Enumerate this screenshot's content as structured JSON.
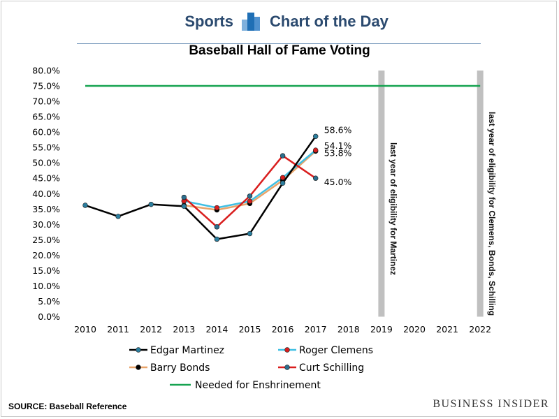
{
  "header": {
    "left": "Sports",
    "right": "Chart of the Day"
  },
  "source": "SOURCE: Baseball Reference",
  "brand": "BUSINESS INSIDER",
  "colors": {
    "edgar": "#000000",
    "edgar_marker": "#2c7f9f",
    "clemens": "#3fbfe3",
    "bonds": "#e8a46a",
    "schilling": "#d91e1e",
    "schilling_marker": "#2c6f8f",
    "enshrinement": "#16a350",
    "eligibility_bar": "#c0c0c0",
    "header": "#2b4a6f"
  },
  "chart_data": {
    "type": "line",
    "title": "Baseball Hall of Fame Voting",
    "categories": [
      "2010",
      "2011",
      "2012",
      "2013",
      "2014",
      "2015",
      "2016",
      "2017",
      "2018",
      "2019",
      "2020",
      "2021",
      "2022"
    ],
    "ylim": [
      0,
      80
    ],
    "yticks": [
      "0.0%",
      "5.0%",
      "10.0%",
      "15.0%",
      "20.0%",
      "25.0%",
      "30.0%",
      "35.0%",
      "40.0%",
      "45.0%",
      "50.0%",
      "55.0%",
      "60.0%",
      "65.0%",
      "70.0%",
      "75.0%",
      "80.0%"
    ],
    "series": [
      {
        "name": "Edgar Martinez",
        "values": [
          36.2,
          32.6,
          36.5,
          35.9,
          25.2,
          27.0,
          43.4,
          58.6,
          null,
          null,
          null,
          null,
          null
        ]
      },
      {
        "name": "Roger Clemens",
        "values": [
          null,
          null,
          null,
          37.6,
          35.4,
          37.5,
          45.2,
          54.1,
          null,
          null,
          null,
          null,
          null
        ]
      },
      {
        "name": "Barry Bonds",
        "values": [
          null,
          null,
          null,
          36.2,
          34.7,
          36.8,
          44.3,
          53.8,
          null,
          null,
          null,
          null,
          null
        ]
      },
      {
        "name": "Curt Schilling",
        "values": [
          null,
          null,
          null,
          38.8,
          29.2,
          39.2,
          52.3,
          45.0,
          null,
          null,
          null,
          null,
          null
        ]
      },
      {
        "name": "Needed for Enshrinement",
        "values": [
          75,
          75,
          75,
          75,
          75,
          75,
          75,
          75,
          75,
          75,
          75,
          75,
          75
        ]
      }
    ],
    "data_labels": [
      {
        "text": "58.6%",
        "series": "Edgar Martinez"
      },
      {
        "text": "54.1%",
        "series": "Roger Clemens"
      },
      {
        "text": "53.8%",
        "series": "Barry Bonds"
      },
      {
        "text": "45.0%",
        "series": "Curt Schilling"
      }
    ],
    "annotations": [
      {
        "category": "2019",
        "text": "last year of eligibility for Martinez"
      },
      {
        "category": "2022",
        "text": "last year of eligibility for Clemens, Bonds, Schilling"
      }
    ],
    "legend_position": "bottom",
    "grid": false
  }
}
